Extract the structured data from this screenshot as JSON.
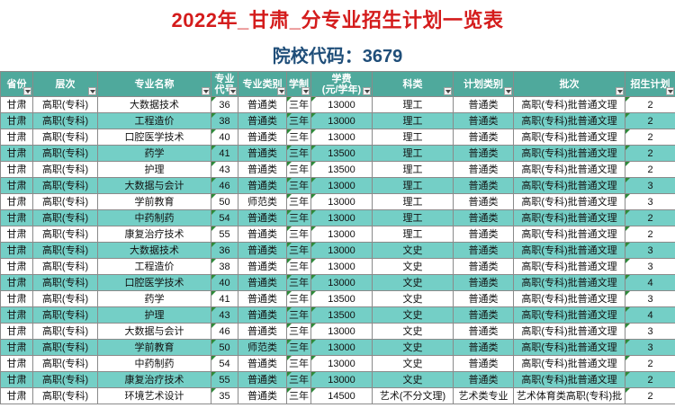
{
  "title": "2022年_甘肃_分专业招生计划一览表",
  "school_code": "院校代码：3679",
  "columns": [
    {
      "label": "省份"
    },
    {
      "label": "层次"
    },
    {
      "label": "专业名称"
    },
    {
      "label": "专业代号",
      "l1": "专业",
      "l2": "代号"
    },
    {
      "label": "专业类别"
    },
    {
      "label": "学制"
    },
    {
      "label": "学费(元/学年)",
      "l1": "学费",
      "l2": "(元/学年)"
    },
    {
      "label": "科类"
    },
    {
      "label": "计划类别"
    },
    {
      "label": "批次"
    },
    {
      "label": "招生计划"
    }
  ],
  "rows": [
    [
      "甘肃",
      "高职(专科)",
      "大数据技术",
      "36",
      "普通类",
      "三年",
      "13000",
      "理工",
      "普通类",
      "高职(专科)批普通文理",
      "2"
    ],
    [
      "甘肃",
      "高职(专科)",
      "工程造价",
      "38",
      "普通类",
      "三年",
      "13000",
      "理工",
      "普通类",
      "高职(专科)批普通文理",
      "2"
    ],
    [
      "甘肃",
      "高职(专科)",
      "口腔医学技术",
      "40",
      "普通类",
      "三年",
      "13000",
      "理工",
      "普通类",
      "高职(专科)批普通文理",
      "2"
    ],
    [
      "甘肃",
      "高职(专科)",
      "药学",
      "41",
      "普通类",
      "三年",
      "13500",
      "理工",
      "普通类",
      "高职(专科)批普通文理",
      "2"
    ],
    [
      "甘肃",
      "高职(专科)",
      "护理",
      "43",
      "普通类",
      "三年",
      "13500",
      "理工",
      "普通类",
      "高职(专科)批普通文理",
      "2"
    ],
    [
      "甘肃",
      "高职(专科)",
      "大数据与会计",
      "46",
      "普通类",
      "三年",
      "13000",
      "理工",
      "普通类",
      "高职(专科)批普通文理",
      "3"
    ],
    [
      "甘肃",
      "高职(专科)",
      "学前教育",
      "50",
      "师范类",
      "三年",
      "13000",
      "理工",
      "普通类",
      "高职(专科)批普通文理",
      "3"
    ],
    [
      "甘肃",
      "高职(专科)",
      "中药制药",
      "54",
      "普通类",
      "三年",
      "13000",
      "理工",
      "普通类",
      "高职(专科)批普通文理",
      "2"
    ],
    [
      "甘肃",
      "高职(专科)",
      "康复治疗技术",
      "55",
      "普通类",
      "三年",
      "13000",
      "理工",
      "普通类",
      "高职(专科)批普通文理",
      "2"
    ],
    [
      "甘肃",
      "高职(专科)",
      "大数据技术",
      "36",
      "普通类",
      "三年",
      "13000",
      "文史",
      "普通类",
      "高职(专科)批普通文理",
      "3"
    ],
    [
      "甘肃",
      "高职(专科)",
      "工程造价",
      "38",
      "普通类",
      "三年",
      "13000",
      "文史",
      "普通类",
      "高职(专科)批普通文理",
      "3"
    ],
    [
      "甘肃",
      "高职(专科)",
      "口腔医学技术",
      "40",
      "普通类",
      "三年",
      "13000",
      "文史",
      "普通类",
      "高职(专科)批普通文理",
      "4"
    ],
    [
      "甘肃",
      "高职(专科)",
      "药学",
      "41",
      "普通类",
      "三年",
      "13500",
      "文史",
      "普通类",
      "高职(专科)批普通文理",
      "3"
    ],
    [
      "甘肃",
      "高职(专科)",
      "护理",
      "43",
      "普通类",
      "三年",
      "13500",
      "文史",
      "普通类",
      "高职(专科)批普通文理",
      "4"
    ],
    [
      "甘肃",
      "高职(专科)",
      "大数据与会计",
      "46",
      "普通类",
      "三年",
      "13000",
      "文史",
      "普通类",
      "高职(专科)批普通文理",
      "3"
    ],
    [
      "甘肃",
      "高职(专科)",
      "学前教育",
      "50",
      "师范类",
      "三年",
      "13000",
      "文史",
      "普通类",
      "高职(专科)批普通文理",
      "3"
    ],
    [
      "甘肃",
      "高职(专科)",
      "中药制药",
      "54",
      "普通类",
      "三年",
      "13000",
      "文史",
      "普通类",
      "高职(专科)批普通文理",
      "2"
    ],
    [
      "甘肃",
      "高职(专科)",
      "康复治疗技术",
      "55",
      "普通类",
      "三年",
      "13000",
      "文史",
      "普通类",
      "高职(专科)批普通文理",
      "2"
    ],
    [
      "甘肃",
      "高职(专科)",
      "环境艺术设计",
      "35",
      "普通类",
      "三年",
      "14500",
      "艺术(不分文理)",
      "艺术类专业",
      "艺术体育类高职(专科)批",
      "2"
    ]
  ]
}
